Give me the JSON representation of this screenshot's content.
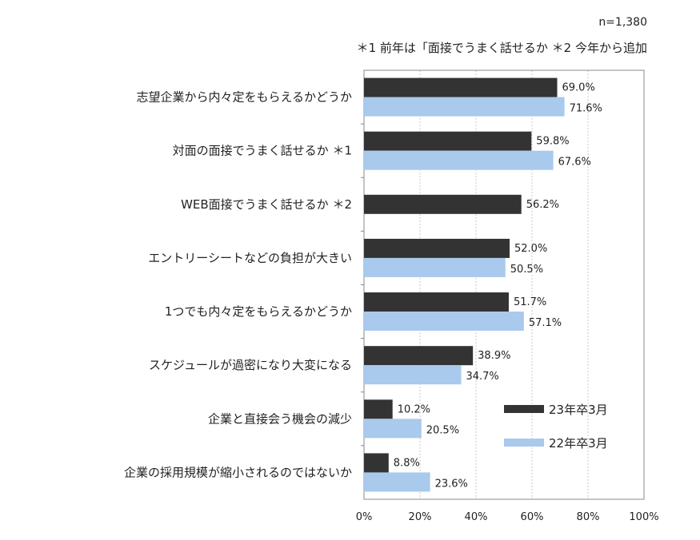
{
  "notes": {
    "n": "n=1,380",
    "footnotes": "＊1  前年は「面接でうまく話せるか    ＊2 今年から追加"
  },
  "chart_data": {
    "type": "bar",
    "orientation": "horizontal",
    "categories": [
      "志望企業から内々定をもらえるかどうか",
      "対面の面接でうまく話せるか  ＊1",
      "WEB面接でうまく話せるか  ＊2",
      "エントリーシートなどの負担が大きい",
      "1つでも内々定をもらえるかどうか",
      "スケジュールが過密になり大変になる",
      "企業と直接会う機会の減少",
      "企業の採用規模が縮小されるのではないか"
    ],
    "series": [
      {
        "name": "23年卒3月",
        "color": "#333333",
        "values": [
          69.0,
          59.8,
          56.2,
          52.0,
          51.7,
          38.9,
          10.2,
          8.8
        ],
        "labels": [
          "69.0%",
          "59.8%",
          "56.2%",
          "52.0%",
          "51.7%",
          "38.9%",
          "10.2%",
          "8.8%"
        ]
      },
      {
        "name": "22年卒3月",
        "color": "#a9c9ed",
        "values": [
          71.6,
          67.6,
          null,
          50.5,
          57.1,
          34.7,
          20.5,
          23.6
        ],
        "labels": [
          "71.6%",
          "67.6%",
          "",
          "50.5%",
          "57.1%",
          "34.7%",
          "20.5%",
          "23.6%"
        ]
      }
    ],
    "xlim": [
      0,
      100
    ],
    "xticks": [
      "0%",
      "20%",
      "40%",
      "60%",
      "80%",
      "100%"
    ],
    "grid": true,
    "legend_position": "bottom-right"
  }
}
